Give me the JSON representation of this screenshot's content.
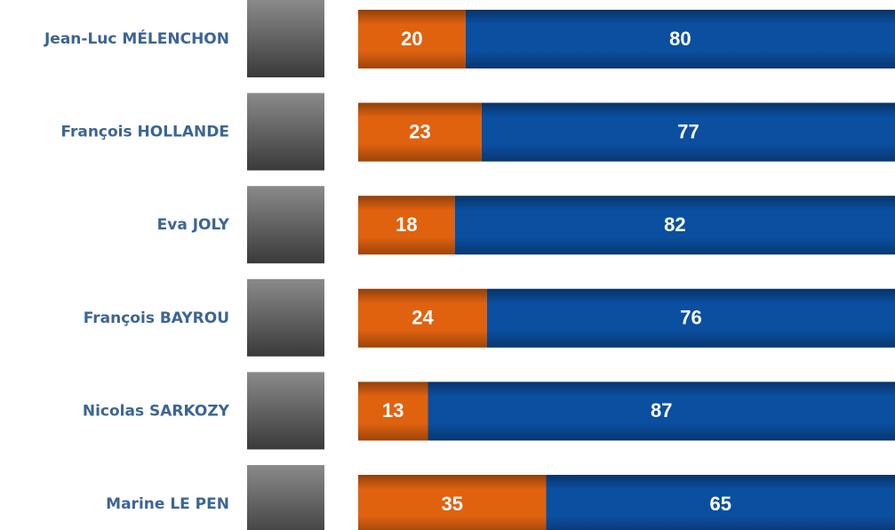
{
  "chart_data": {
    "type": "bar",
    "orientation": "horizontal",
    "stacked": true,
    "categories": [
      "Jean-Luc MÉLENCHON",
      "François HOLLANDE",
      "Eva JOLY",
      "François BAYROU",
      "Nicolas SARKOZY",
      "Marine LE PEN"
    ],
    "series": [
      {
        "color": "#e0620f",
        "values": [
          20,
          23,
          18,
          24,
          13,
          35
        ]
      },
      {
        "color": "#0b4fa0",
        "values": [
          80,
          77,
          82,
          76,
          87,
          65
        ]
      }
    ]
  }
}
